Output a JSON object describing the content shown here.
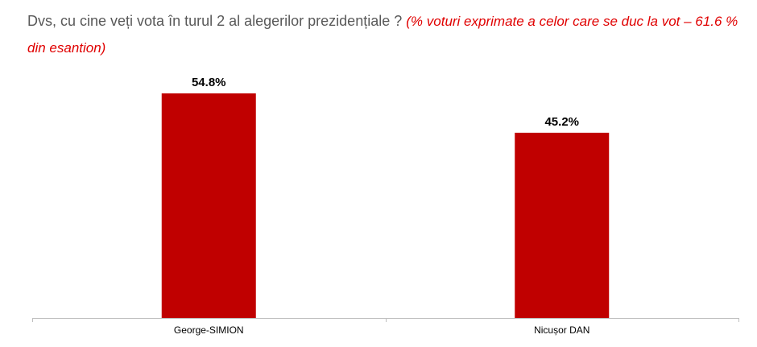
{
  "chart_data": {
    "type": "bar",
    "title": "Dvs, cu cine veți vota în turul 2 al alegerilor prezidențiale ?",
    "subtitle": "(% voturi exprimate a celor care se duc la vot – 61.6 % din esantion)",
    "categories": [
      "George-SIMION",
      "Nicușor DAN"
    ],
    "values": [
      54.8,
      45.2
    ],
    "value_labels": [
      "54.8%",
      "45.2%"
    ],
    "xlabel": "",
    "ylabel": "",
    "ylim": [
      0,
      60
    ],
    "grid": false,
    "color": "#c00000",
    "axis_color": "#bfbfbf"
  }
}
